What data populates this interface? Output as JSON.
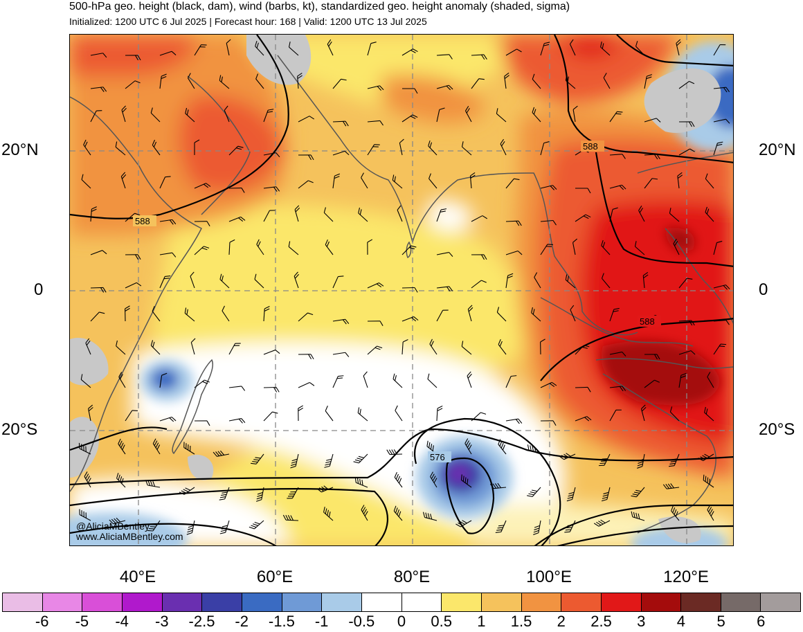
{
  "header": {
    "title": "500-hPa geo. height (black, dam), wind (barbs, kt), standardized geo. height anomaly (shaded, sigma)",
    "subtitle": "Initialized: 1200 UTC 6 Jul 2025 | Forecast hour: 168 | Valid: 1200 UTC 13 Jul 2025"
  },
  "map": {
    "lat_labels": [
      {
        "name": "lat-20n-left",
        "text": "20°N",
        "side": "left",
        "lat": 20
      },
      {
        "name": "lat-0-left",
        "text": "0",
        "side": "left",
        "lat": 0
      },
      {
        "name": "lat-20s-left",
        "text": "20°S",
        "side": "left",
        "lat": -20
      },
      {
        "name": "lat-20n-right",
        "text": "20°N",
        "side": "right",
        "lat": 20
      },
      {
        "name": "lat-0-right",
        "text": "0",
        "side": "right",
        "lat": 0
      },
      {
        "name": "lat-20s-right",
        "text": "20°S",
        "side": "right",
        "lat": -20
      }
    ],
    "lon_labels": [
      {
        "text": "40°E",
        "lon": 40
      },
      {
        "text": "60°E",
        "lon": 60
      },
      {
        "text": "80°E",
        "lon": 80
      },
      {
        "text": "100°E",
        "lon": 100
      },
      {
        "text": "120°E",
        "lon": 120
      }
    ],
    "contour_labels": [
      "588",
      "588",
      "588",
      "576"
    ],
    "extent": {
      "lon_min": 30,
      "lon_max": 127,
      "lat_min": -37,
      "lat_max": 36
    }
  },
  "colorbar": {
    "colors": [
      "#eabde6",
      "#e887e6",
      "#d94fd8",
      "#b019cc",
      "#6a2fb0",
      "#3a3fa6",
      "#3a6bc2",
      "#6f9ad6",
      "#a9cbe8",
      "#ffffff",
      "#ffffff",
      "#fbe76b",
      "#f5c25c",
      "#f19341",
      "#ec5a30",
      "#e11818",
      "#a40c0c",
      "#6b2a24",
      "#766a68",
      "#a39c9c"
    ],
    "labels": [
      "-6",
      "-5",
      "-4",
      "-3",
      "-2.5",
      "-2",
      "-1.5",
      "-1",
      "-0.5",
      "0",
      "0.5",
      "1",
      "1.5",
      "2",
      "2.5",
      "3",
      "4",
      "5",
      "6"
    ]
  },
  "credit": {
    "handle": "@AliciaMBentley",
    "website": "www.AliciaMBentley.com"
  }
}
